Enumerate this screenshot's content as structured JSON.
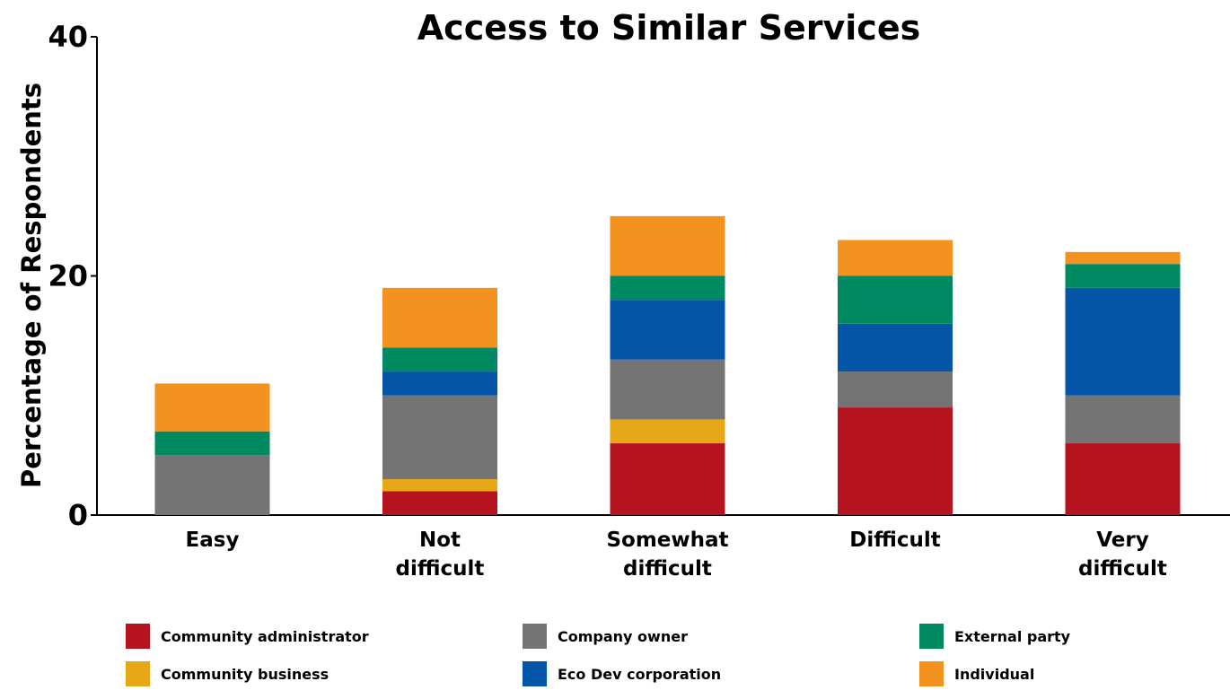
{
  "chart_data": {
    "type": "bar",
    "stacked": true,
    "title": "Access to Similar Services",
    "xlabel": "",
    "ylabel": "Percentage of Respondents",
    "ylim": [
      0,
      40
    ],
    "yticks": [
      0,
      20,
      40
    ],
    "grid": false,
    "legend_position": "bottom",
    "categories": [
      [
        "Easy"
      ],
      [
        "Not",
        "difficult"
      ],
      [
        "Somewhat",
        "difficult"
      ],
      [
        "Difficult"
      ],
      [
        "Very",
        "difficult"
      ]
    ],
    "series": [
      {
        "name": "Community administrator",
        "color": "#b5141f",
        "values": [
          0,
          2,
          6,
          9,
          6
        ]
      },
      {
        "name": "Community business",
        "color": "#e6a817",
        "values": [
          0,
          1,
          2,
          0,
          0
        ]
      },
      {
        "name": "Company owner",
        "color": "#747474",
        "values": [
          5,
          7,
          5,
          3,
          4
        ]
      },
      {
        "name": "Eco Dev corporation",
        "color": "#0454a8",
        "values": [
          0,
          2,
          5,
          4,
          9
        ]
      },
      {
        "name": "External party",
        "color": "#008a62",
        "values": [
          2,
          2,
          2,
          4,
          2
        ]
      },
      {
        "name": "Individual",
        "color": "#f49220",
        "values": [
          4,
          5,
          5,
          3,
          1
        ]
      }
    ],
    "legend_order": [
      "Community administrator",
      "Company owner",
      "External party",
      "Community business",
      "Eco Dev corporation",
      "Individual"
    ]
  }
}
